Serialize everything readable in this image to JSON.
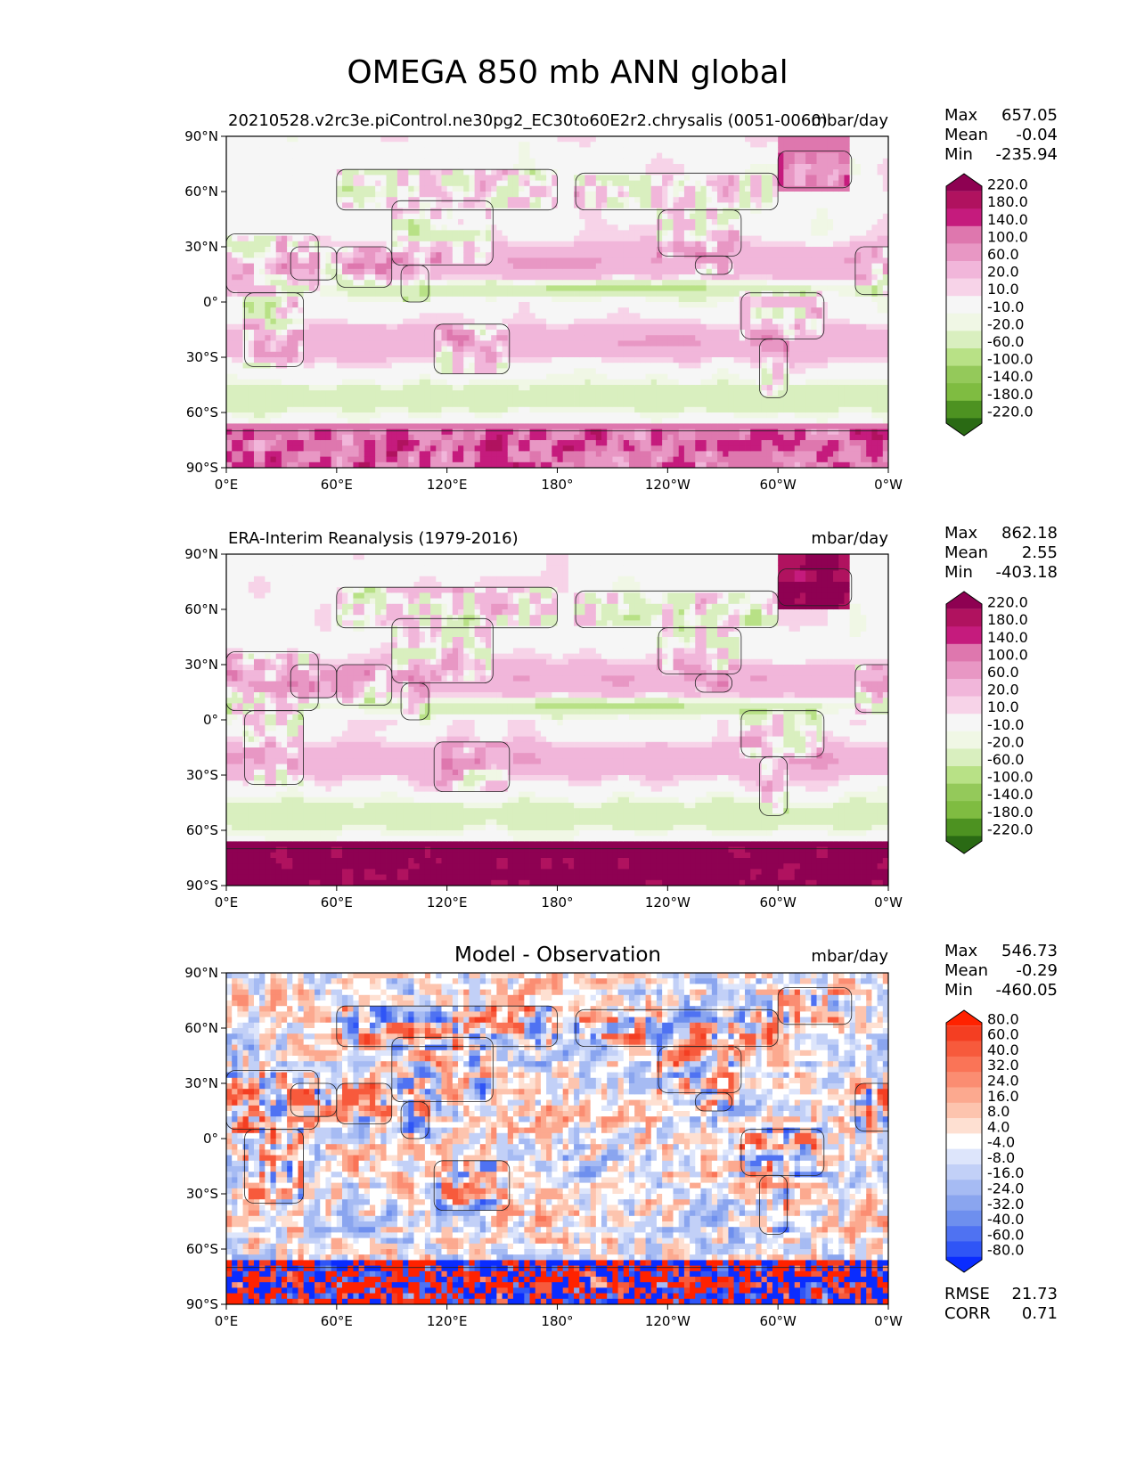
{
  "figure": {
    "title": "OMEGA 850 mb ANN global"
  },
  "axes": {
    "x_ticks": [
      "0°E",
      "60°E",
      "120°E",
      "180°",
      "120°W",
      "60°W",
      "0°W"
    ],
    "y_ticks": [
      "90°N",
      "60°N",
      "30°N",
      "0°",
      "30°S",
      "60°S",
      "90°S"
    ]
  },
  "panels": [
    {
      "id": "model",
      "left_title": "20210528.v2rc3e.piControl.ne30pg2_EC30to60E2r2.chrysalis (0051-0060)",
      "center_title": "",
      "units": "mbar/day",
      "stats": [
        {
          "label": "Max",
          "value": "657.05"
        },
        {
          "label": "Mean",
          "value": "-0.04"
        },
        {
          "label": "Min",
          "value": "-235.94"
        }
      ],
      "extra_stats": [],
      "colorbar": {
        "labels": [
          "220.0",
          "180.0",
          "140.0",
          "100.0",
          "60.0",
          "20.0",
          "10.0",
          "-10.0",
          "-20.0",
          "-60.0",
          "-100.0",
          "-140.0",
          "-180.0",
          "-220.0"
        ],
        "colors": [
          "#8e0152",
          "#b0125f",
          "#c51b7d",
          "#de77ae",
          "#e897c4",
          "#f1b6da",
          "#f7d3e8",
          "#f6f6f6",
          "#f0f7e5",
          "#d9efbf",
          "#b8e186",
          "#94c95a",
          "#7fbc41",
          "#4d9221",
          "#2a6a14"
        ]
      }
    },
    {
      "id": "obs",
      "left_title": "ERA-Interim Reanalysis (1979-2016)",
      "center_title": "",
      "units": "mbar/day",
      "stats": [
        {
          "label": "Max",
          "value": "862.18"
        },
        {
          "label": "Mean",
          "value": "2.55"
        },
        {
          "label": "Min",
          "value": "-403.18"
        }
      ],
      "extra_stats": [],
      "colorbar": {
        "labels": [
          "220.0",
          "180.0",
          "140.0",
          "100.0",
          "60.0",
          "20.0",
          "10.0",
          "-10.0",
          "-20.0",
          "-60.0",
          "-100.0",
          "-140.0",
          "-180.0",
          "-220.0"
        ],
        "colors": [
          "#8e0152",
          "#b0125f",
          "#c51b7d",
          "#de77ae",
          "#e897c4",
          "#f1b6da",
          "#f7d3e8",
          "#f6f6f6",
          "#f0f7e5",
          "#d9efbf",
          "#b8e186",
          "#94c95a",
          "#7fbc41",
          "#4d9221",
          "#2a6a14"
        ]
      }
    },
    {
      "id": "diff",
      "left_title": "",
      "center_title": "Model - Observation",
      "units": "mbar/day",
      "stats": [
        {
          "label": "Max",
          "value": "546.73"
        },
        {
          "label": "Mean",
          "value": "-0.29"
        },
        {
          "label": "Min",
          "value": "-460.05"
        }
      ],
      "extra_stats": [
        {
          "label": "RMSE",
          "value": "21.73"
        },
        {
          "label": "CORR",
          "value": "0.71"
        }
      ],
      "colorbar": {
        "labels": [
          "80.0",
          "60.0",
          "40.0",
          "32.0",
          "24.0",
          "16.0",
          "8.0",
          "4.0",
          "-4.0",
          "-8.0",
          "-16.0",
          "-24.0",
          "-32.0",
          "-40.0",
          "-60.0",
          "-80.0"
        ],
        "colors": [
          "#ff2200",
          "#f43e22",
          "#f75a3c",
          "#fa7457",
          "#fb8d72",
          "#fca98f",
          "#fdc4ae",
          "#fee0d2",
          "#ffffff",
          "#dde5fb",
          "#c2d0f7",
          "#a6bbf3",
          "#8aa5ef",
          "#6e8fee",
          "#4f72f2",
          "#2f55f6",
          "#0a2cff"
        ]
      }
    }
  ]
}
